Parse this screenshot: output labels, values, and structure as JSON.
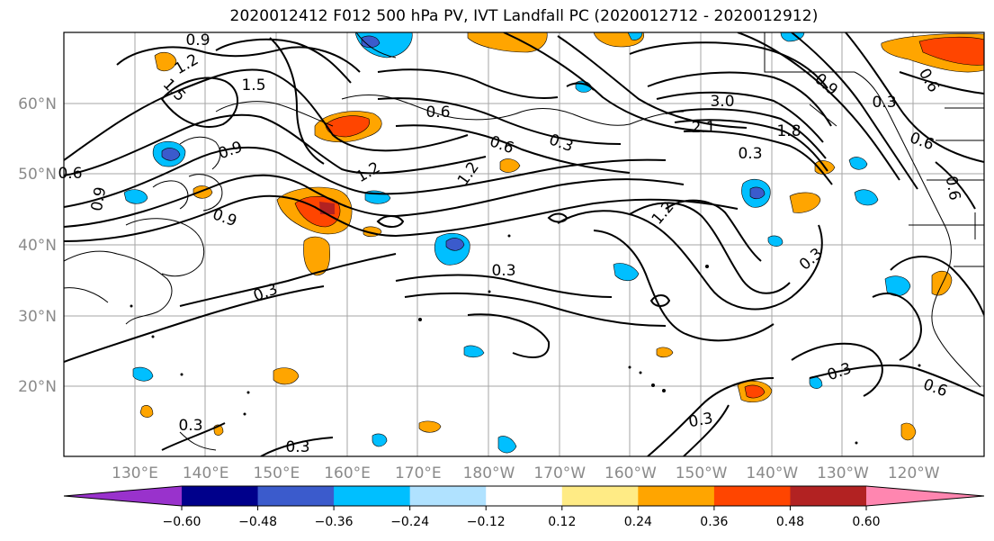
{
  "title": "2020012412 F012 500 hPa PV, IVT Landfall PC (2020012712 - 2020012912)",
  "lat_labels": [
    "20°N",
    "30°N",
    "40°N",
    "50°N",
    "60°N"
  ],
  "lon_labels": [
    "130°E",
    "140°E",
    "150°E",
    "160°E",
    "170°E",
    "180°W",
    "170°W",
    "160°W",
    "150°W",
    "140°W",
    "130°W",
    "120°W"
  ],
  "colorbar": {
    "colors": [
      "#9932cc",
      "#00008b",
      "#3b5bcc",
      "#00bfff",
      "#b0e2ff",
      "#ffffff",
      "#ffeb85",
      "#ffa500",
      "#ff4500",
      "#b22222",
      "#ff86b0"
    ],
    "tick_labels": [
      "−0.60",
      "−0.48",
      "−0.36",
      "−0.24",
      "−0.12",
      "0.12",
      "0.24",
      "0.36",
      "0.48",
      "0.60"
    ]
  },
  "contour_labels": [
    "0.9",
    "1.2",
    "1.5",
    "1.5",
    "0.9",
    "0.6",
    "0.9",
    "1.2",
    "0.6",
    "0.3",
    "0.6",
    "1.2",
    "0.9",
    "0.3",
    "3.0",
    "2.1",
    "1.8",
    "0.3",
    "0.9",
    "0.6",
    "0.3",
    "0.6",
    "1.2",
    "0.3",
    "0.3",
    "0.3",
    "0.3",
    "0.3",
    "0.6",
    "0.3",
    "0.6"
  ]
}
